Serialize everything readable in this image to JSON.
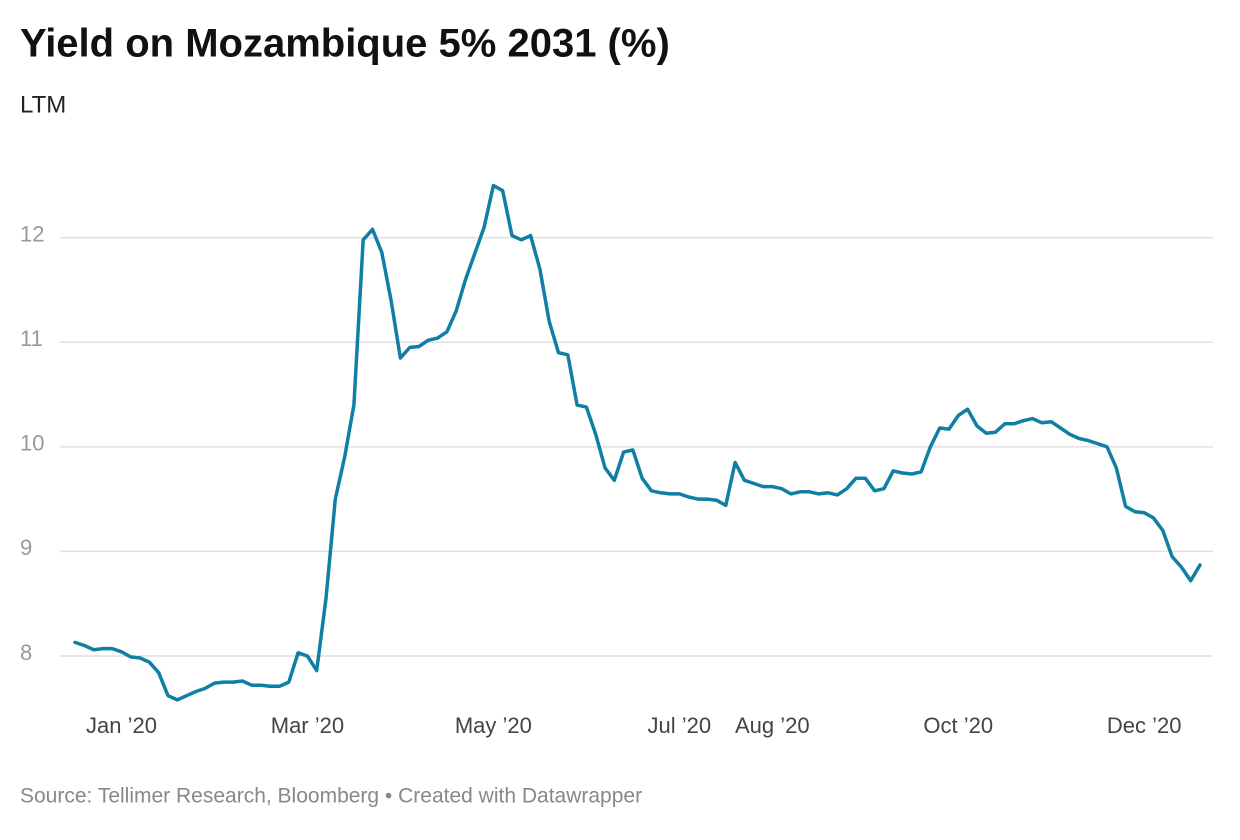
{
  "chart_data": {
    "type": "line",
    "title": "Yield on Mozambique 5% 2031 (%)",
    "subtitle": "LTM",
    "source": "Source: Tellimer Research, Bloomberg • Created with Datawrapper",
    "categories": [
      null,
      null,
      null,
      null,
      null,
      "Jan ’20",
      null,
      null,
      null,
      null,
      null,
      null,
      null,
      null,
      null,
      null,
      null,
      null,
      null,
      null,
      null,
      null,
      null,
      null,
      null,
      "Mar ’20",
      null,
      null,
      null,
      null,
      null,
      null,
      null,
      null,
      null,
      null,
      null,
      null,
      null,
      null,
      null,
      null,
      null,
      null,
      null,
      "May ’20",
      null,
      null,
      null,
      null,
      null,
      null,
      null,
      null,
      null,
      null,
      null,
      null,
      null,
      null,
      null,
      null,
      null,
      null,
      null,
      "Jul ’20",
      null,
      null,
      null,
      null,
      null,
      null,
      null,
      null,
      null,
      "Aug ’20",
      null,
      null,
      null,
      null,
      null,
      null,
      null,
      null,
      null,
      null,
      null,
      null,
      null,
      null,
      null,
      null,
      null,
      null,
      null,
      "Oct ’20",
      null,
      null,
      null,
      null,
      null,
      null,
      null,
      null,
      null,
      null,
      null,
      null,
      null,
      null,
      null,
      null,
      null,
      null,
      null,
      "Dec ’20",
      null,
      null,
      null,
      null,
      null,
      null
    ],
    "series": [
      {
        "name": "Yield",
        "color": "#0f7fa6",
        "values": [
          8.13,
          8.1,
          8.06,
          8.07,
          8.07,
          8.04,
          7.99,
          7.98,
          7.94,
          7.84,
          7.62,
          7.58,
          7.62,
          7.66,
          7.69,
          7.74,
          7.75,
          7.75,
          7.76,
          7.72,
          7.72,
          7.71,
          7.71,
          7.75,
          8.03,
          8.0,
          7.86,
          8.55,
          9.5,
          9.9,
          10.4,
          11.98,
          12.08,
          11.86,
          11.4,
          10.85,
          10.95,
          10.96,
          11.02,
          11.04,
          11.1,
          11.3,
          11.6,
          11.85,
          12.1,
          12.5,
          12.45,
          12.02,
          11.98,
          12.02,
          11.7,
          11.2,
          10.9,
          10.88,
          10.4,
          10.38,
          10.12,
          9.8,
          9.68,
          9.95,
          9.97,
          9.7,
          9.58,
          9.56,
          9.55,
          9.55,
          9.52,
          9.5,
          9.5,
          9.49,
          9.44,
          9.85,
          9.68,
          9.65,
          9.62,
          9.62,
          9.6,
          9.55,
          9.57,
          9.57,
          9.55,
          9.56,
          9.54,
          9.6,
          9.7,
          9.7,
          9.58,
          9.6,
          9.77,
          9.75,
          9.74,
          9.76,
          10.0,
          10.18,
          10.17,
          10.3,
          10.36,
          10.2,
          10.13,
          10.14,
          10.22,
          10.22,
          10.25,
          10.27,
          10.23,
          10.24,
          10.18,
          10.12,
          10.08,
          10.06,
          10.03,
          10.0,
          9.8,
          9.43,
          9.38,
          9.37,
          9.32,
          9.2,
          8.95,
          8.85,
          8.72,
          8.87
        ]
      }
    ],
    "ylim": [
      7.55,
      12.6
    ],
    "yticks": [
      8,
      9,
      10,
      11,
      12
    ],
    "grid": true
  }
}
